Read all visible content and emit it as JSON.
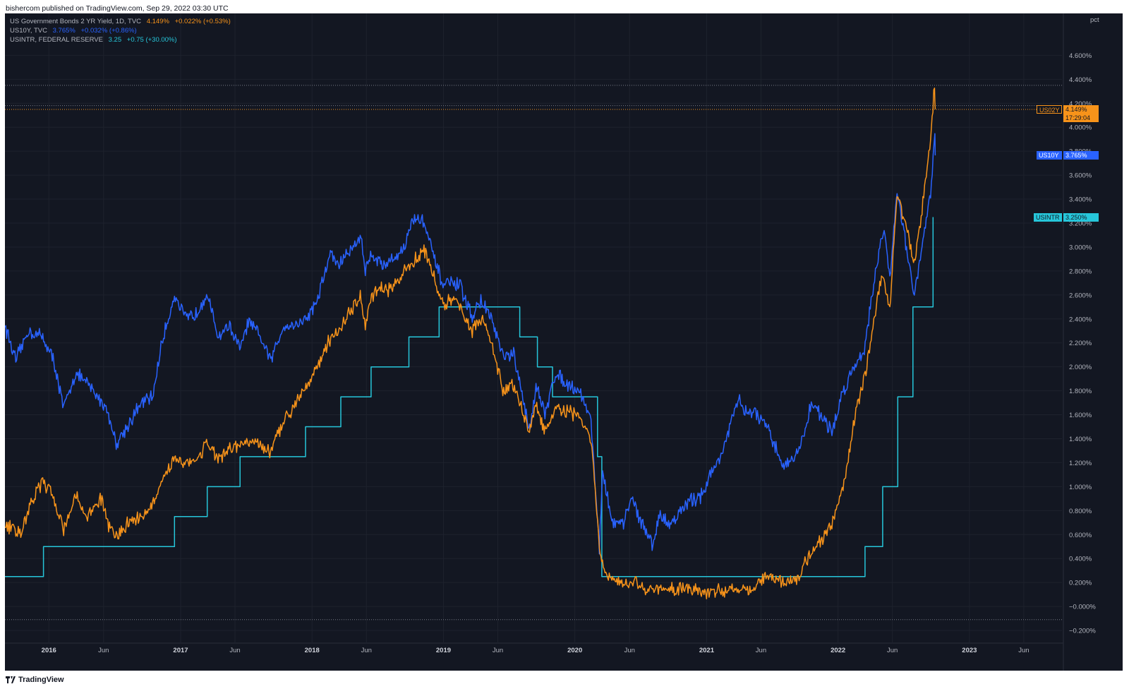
{
  "header": {
    "published": "bishercom published on TradingView.com, Sep 29, 2022 03:30 UTC"
  },
  "legend": [
    {
      "name": "US Government Bonds 2 YR Yield, 1D, TVC",
      "value": "4.149%",
      "change": "+0.022% (+0.53%)",
      "color": "#f7931a"
    },
    {
      "name": "US10Y, TVC",
      "value": "3.765%",
      "change": "+0.032% (+0.86%)",
      "color": "#2962ff"
    },
    {
      "name": "USINTR, FEDERAL RESERVE",
      "value": "3.25",
      "change": "+0.75 (+30.00%)",
      "color": "#26c6da"
    }
  ],
  "axis_unit": "pct",
  "price_tags": [
    {
      "id": "us02y",
      "symbol": "US02Y",
      "value": "4.149%",
      "countdown": "17:29:04",
      "price": 4.149,
      "color": "#f7931a"
    },
    {
      "id": "us10y",
      "symbol": "US10Y",
      "value": "3.765%",
      "price": 3.765,
      "color": "#2962ff"
    },
    {
      "id": "usintr",
      "symbol": "USINTR",
      "value": "3.250%",
      "price": 3.25,
      "color": "#26c6da"
    }
  ],
  "footer": {
    "brand": "TradingView"
  },
  "colors": {
    "background": "#131722",
    "grid": "#1e222d",
    "text": "#b2b5be"
  },
  "chart_data": {
    "type": "line",
    "xlabel": "",
    "ylabel": "pct",
    "xlim": [
      "2015-09-01",
      "2023-09-15"
    ],
    "ylim": [
      -0.3,
      4.95
    ],
    "grid": true,
    "y_ticks": [
      "4.600%",
      "4.400%",
      "4.200%",
      "4.000%",
      "3.800%",
      "3.600%",
      "3.400%",
      "3.200%",
      "3.000%",
      "2.800%",
      "2.600%",
      "2.400%",
      "2.200%",
      "2.000%",
      "1.800%",
      "1.600%",
      "1.400%",
      "1.200%",
      "1.000%",
      "0.800%",
      "0.600%",
      "0.400%",
      "0.200%",
      "−0.000%",
      "−0.200%"
    ],
    "x_ticks": [
      {
        "date": "2016-01-01",
        "label": "2016",
        "year": true
      },
      {
        "date": "2016-06-01",
        "label": "Jun",
        "year": false
      },
      {
        "date": "2017-01-01",
        "label": "2017",
        "year": true
      },
      {
        "date": "2017-06-01",
        "label": "Jun",
        "year": false
      },
      {
        "date": "2018-01-01",
        "label": "2018",
        "year": true
      },
      {
        "date": "2018-06-01",
        "label": "Jun",
        "year": false
      },
      {
        "date": "2019-01-01",
        "label": "2019",
        "year": true
      },
      {
        "date": "2019-06-01",
        "label": "Jun",
        "year": false
      },
      {
        "date": "2020-01-01",
        "label": "2020",
        "year": true
      },
      {
        "date": "2020-06-01",
        "label": "Jun",
        "year": false
      },
      {
        "date": "2021-01-01",
        "label": "2021",
        "year": true
      },
      {
        "date": "2021-06-01",
        "label": "Jun",
        "year": false
      },
      {
        "date": "2022-01-01",
        "label": "2022",
        "year": true
      },
      {
        "date": "2022-06-01",
        "label": "Jun",
        "year": false
      },
      {
        "date": "2023-01-01",
        "label": "2023",
        "year": true
      },
      {
        "date": "2023-06-01",
        "label": "Jun",
        "year": false
      }
    ],
    "hlines": [
      {
        "value": 4.35,
        "style": "dotted",
        "color": "#787b86"
      },
      {
        "value": 4.18,
        "style": "dotted",
        "color": "#787b86"
      },
      {
        "value": 4.149,
        "style": "dotted",
        "color": "#f7931a"
      },
      {
        "value": -0.11,
        "style": "dotted",
        "color": "#787b86"
      }
    ],
    "series": [
      {
        "name": "US10Y",
        "color": "#2962ff",
        "style": "line",
        "points": [
          [
            "2015-09-01",
            2.35
          ],
          [
            "2015-10-01",
            2.05
          ],
          [
            "2015-11-05",
            2.3
          ],
          [
            "2015-12-15",
            2.25
          ],
          [
            "2016-01-15",
            2.05
          ],
          [
            "2016-02-11",
            1.65
          ],
          [
            "2016-03-15",
            1.95
          ],
          [
            "2016-04-20",
            1.85
          ],
          [
            "2016-05-15",
            1.75
          ],
          [
            "2016-06-10",
            1.65
          ],
          [
            "2016-07-06",
            1.36
          ],
          [
            "2016-08-15",
            1.55
          ],
          [
            "2016-09-15",
            1.7
          ],
          [
            "2016-10-15",
            1.75
          ],
          [
            "2016-11-10",
            2.2
          ],
          [
            "2016-12-15",
            2.6
          ],
          [
            "2017-01-15",
            2.4
          ],
          [
            "2017-02-15",
            2.45
          ],
          [
            "2017-03-14",
            2.62
          ],
          [
            "2017-04-15",
            2.25
          ],
          [
            "2017-05-15",
            2.35
          ],
          [
            "2017-06-14",
            2.15
          ],
          [
            "2017-07-10",
            2.38
          ],
          [
            "2017-08-15",
            2.22
          ],
          [
            "2017-09-08",
            2.05
          ],
          [
            "2017-10-15",
            2.35
          ],
          [
            "2017-11-15",
            2.35
          ],
          [
            "2017-12-15",
            2.4
          ],
          [
            "2018-01-15",
            2.55
          ],
          [
            "2018-02-21",
            2.95
          ],
          [
            "2018-03-15",
            2.85
          ],
          [
            "2018-04-25",
            3.0
          ],
          [
            "2018-05-17",
            3.1
          ],
          [
            "2018-05-29",
            2.8
          ],
          [
            "2018-06-15",
            2.95
          ],
          [
            "2018-07-15",
            2.85
          ],
          [
            "2018-08-15",
            2.9
          ],
          [
            "2018-09-15",
            3.0
          ],
          [
            "2018-10-08",
            3.24
          ],
          [
            "2018-11-08",
            3.22
          ],
          [
            "2018-12-01",
            2.95
          ],
          [
            "2018-12-31",
            2.68
          ],
          [
            "2019-01-15",
            2.7
          ],
          [
            "2019-02-15",
            2.68
          ],
          [
            "2019-03-22",
            2.42
          ],
          [
            "2019-04-15",
            2.55
          ],
          [
            "2019-05-15",
            2.4
          ],
          [
            "2019-06-15",
            2.08
          ],
          [
            "2019-07-15",
            2.1
          ],
          [
            "2019-08-28",
            1.47
          ],
          [
            "2019-09-15",
            1.85
          ],
          [
            "2019-10-10",
            1.6
          ],
          [
            "2019-11-08",
            1.95
          ],
          [
            "2019-12-15",
            1.85
          ],
          [
            "2020-01-15",
            1.8
          ],
          [
            "2020-02-15",
            1.55
          ],
          [
            "2020-03-09",
            0.5
          ],
          [
            "2020-03-18",
            1.1
          ],
          [
            "2020-04-15",
            0.7
          ],
          [
            "2020-05-15",
            0.68
          ],
          [
            "2020-06-05",
            0.92
          ],
          [
            "2020-07-15",
            0.62
          ],
          [
            "2020-08-05",
            0.52
          ],
          [
            "2020-08-25",
            0.78
          ],
          [
            "2020-09-15",
            0.68
          ],
          [
            "2020-10-15",
            0.77
          ],
          [
            "2020-11-15",
            0.88
          ],
          [
            "2020-12-15",
            0.92
          ],
          [
            "2021-01-15",
            1.12
          ],
          [
            "2021-02-15",
            1.3
          ],
          [
            "2021-03-31",
            1.74
          ],
          [
            "2021-04-15",
            1.62
          ],
          [
            "2021-05-15",
            1.62
          ],
          [
            "2021-06-15",
            1.5
          ],
          [
            "2021-07-15",
            1.3
          ],
          [
            "2021-08-04",
            1.17
          ],
          [
            "2021-09-15",
            1.3
          ],
          [
            "2021-10-21",
            1.7
          ],
          [
            "2021-11-15",
            1.6
          ],
          [
            "2021-12-15",
            1.45
          ],
          [
            "2022-01-15",
            1.8
          ],
          [
            "2022-02-15",
            2.0
          ],
          [
            "2022-03-15",
            2.15
          ],
          [
            "2022-04-15",
            2.8
          ],
          [
            "2022-05-09",
            3.15
          ],
          [
            "2022-05-25",
            2.75
          ],
          [
            "2022-06-14",
            3.48
          ],
          [
            "2022-07-15",
            2.9
          ],
          [
            "2022-08-01",
            2.58
          ],
          [
            "2022-08-20",
            2.95
          ],
          [
            "2022-09-15",
            3.45
          ],
          [
            "2022-09-27",
            3.95
          ],
          [
            "2022-09-28",
            3.765
          ]
        ]
      },
      {
        "name": "US02Y",
        "color": "#f7931a",
        "style": "line",
        "points": [
          [
            "2015-09-01",
            0.68
          ],
          [
            "2015-10-15",
            0.62
          ],
          [
            "2015-11-15",
            0.88
          ],
          [
            "2015-12-15",
            1.05
          ],
          [
            "2016-01-15",
            0.9
          ],
          [
            "2016-02-11",
            0.65
          ],
          [
            "2016-03-15",
            0.92
          ],
          [
            "2016-04-15",
            0.75
          ],
          [
            "2016-05-25",
            0.9
          ],
          [
            "2016-06-15",
            0.68
          ],
          [
            "2016-07-06",
            0.58
          ],
          [
            "2016-08-15",
            0.72
          ],
          [
            "2016-09-15",
            0.75
          ],
          [
            "2016-10-15",
            0.85
          ],
          [
            "2016-11-15",
            1.05
          ],
          [
            "2016-12-15",
            1.25
          ],
          [
            "2017-01-15",
            1.2
          ],
          [
            "2017-02-15",
            1.22
          ],
          [
            "2017-03-14",
            1.38
          ],
          [
            "2017-04-15",
            1.22
          ],
          [
            "2017-05-15",
            1.3
          ],
          [
            "2017-06-15",
            1.35
          ],
          [
            "2017-07-15",
            1.38
          ],
          [
            "2017-08-15",
            1.33
          ],
          [
            "2017-09-08",
            1.28
          ],
          [
            "2017-10-15",
            1.55
          ],
          [
            "2017-11-15",
            1.7
          ],
          [
            "2017-12-15",
            1.85
          ],
          [
            "2018-01-15",
            2.0
          ],
          [
            "2018-02-15",
            2.2
          ],
          [
            "2018-03-15",
            2.3
          ],
          [
            "2018-04-15",
            2.45
          ],
          [
            "2018-05-15",
            2.58
          ],
          [
            "2018-05-29",
            2.35
          ],
          [
            "2018-06-15",
            2.58
          ],
          [
            "2018-07-15",
            2.65
          ],
          [
            "2018-08-15",
            2.65
          ],
          [
            "2018-09-15",
            2.8
          ],
          [
            "2018-11-08",
            2.98
          ],
          [
            "2018-12-01",
            2.8
          ],
          [
            "2018-12-31",
            2.5
          ],
          [
            "2019-01-15",
            2.55
          ],
          [
            "2019-02-15",
            2.52
          ],
          [
            "2019-03-22",
            2.3
          ],
          [
            "2019-04-15",
            2.4
          ],
          [
            "2019-05-15",
            2.2
          ],
          [
            "2019-06-15",
            1.8
          ],
          [
            "2019-07-15",
            1.85
          ],
          [
            "2019-08-28",
            1.45
          ],
          [
            "2019-09-15",
            1.7
          ],
          [
            "2019-10-10",
            1.45
          ],
          [
            "2019-11-08",
            1.65
          ],
          [
            "2019-12-15",
            1.62
          ],
          [
            "2020-01-15",
            1.58
          ],
          [
            "2020-02-15",
            1.4
          ],
          [
            "2020-03-09",
            0.5
          ],
          [
            "2020-03-20",
            0.3
          ],
          [
            "2020-04-15",
            0.22
          ],
          [
            "2020-05-15",
            0.17
          ],
          [
            "2020-06-15",
            0.2
          ],
          [
            "2020-07-15",
            0.15
          ],
          [
            "2020-08-15",
            0.14
          ],
          [
            "2020-09-15",
            0.13
          ],
          [
            "2020-10-15",
            0.15
          ],
          [
            "2020-11-15",
            0.17
          ],
          [
            "2020-12-15",
            0.12
          ],
          [
            "2021-01-15",
            0.13
          ],
          [
            "2021-02-15",
            0.12
          ],
          [
            "2021-03-15",
            0.15
          ],
          [
            "2021-04-15",
            0.16
          ],
          [
            "2021-05-15",
            0.15
          ],
          [
            "2021-06-15",
            0.25
          ],
          [
            "2021-07-15",
            0.22
          ],
          [
            "2021-08-15",
            0.21
          ],
          [
            "2021-09-15",
            0.25
          ],
          [
            "2021-10-15",
            0.45
          ],
          [
            "2021-11-15",
            0.55
          ],
          [
            "2021-12-15",
            0.68
          ],
          [
            "2022-01-15",
            1.0
          ],
          [
            "2022-02-15",
            1.55
          ],
          [
            "2022-03-15",
            1.9
          ],
          [
            "2022-04-15",
            2.45
          ],
          [
            "2022-05-04",
            2.78
          ],
          [
            "2022-05-25",
            2.5
          ],
          [
            "2022-06-14",
            3.45
          ],
          [
            "2022-07-15",
            3.1
          ],
          [
            "2022-08-01",
            2.85
          ],
          [
            "2022-08-20",
            3.25
          ],
          [
            "2022-09-15",
            3.9
          ],
          [
            "2022-09-26",
            4.35
          ],
          [
            "2022-09-28",
            4.149
          ]
        ]
      },
      {
        "name": "USINTR",
        "color": "#26c6da",
        "style": "step",
        "points": [
          [
            "2015-09-01",
            0.25
          ],
          [
            "2015-12-17",
            0.5
          ],
          [
            "2016-12-15",
            0.75
          ],
          [
            "2017-03-16",
            1.0
          ],
          [
            "2017-06-15",
            1.25
          ],
          [
            "2017-12-14",
            1.5
          ],
          [
            "2018-03-22",
            1.75
          ],
          [
            "2018-06-14",
            2.0
          ],
          [
            "2018-09-27",
            2.25
          ],
          [
            "2018-12-20",
            2.5
          ],
          [
            "2019-08-01",
            2.25
          ],
          [
            "2019-09-19",
            2.0
          ],
          [
            "2019-10-31",
            1.75
          ],
          [
            "2020-03-04",
            1.25
          ],
          [
            "2020-03-16",
            0.25
          ],
          [
            "2022-03-17",
            0.5
          ],
          [
            "2022-05-05",
            1.0
          ],
          [
            "2022-06-16",
            1.75
          ],
          [
            "2022-07-28",
            2.5
          ],
          [
            "2022-09-22",
            3.25
          ]
        ]
      }
    ]
  }
}
